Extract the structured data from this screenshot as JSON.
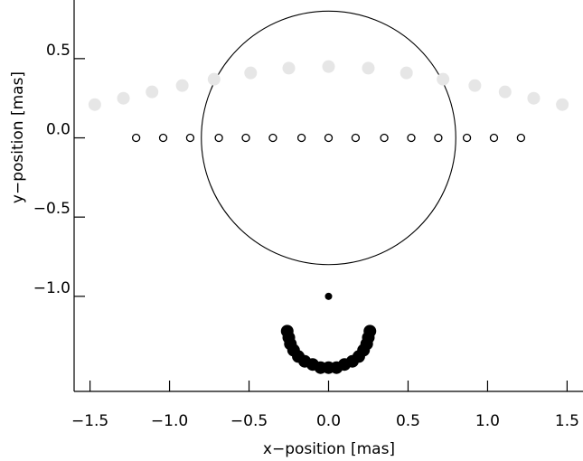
{
  "chart_data": {
    "type": "scatter",
    "xlabel": "x−position [mas]",
    "ylabel": "y−position [mas]",
    "xlim": [
      -1.6,
      1.6
    ],
    "ylim": [
      -1.6,
      0.87
    ],
    "grid": false,
    "x_ticks": [
      {
        "value": -1.5,
        "label": "−1.5"
      },
      {
        "value": -1.0,
        "label": "−1.0"
      },
      {
        "value": -0.5,
        "label": "−0.5"
      },
      {
        "value": 0.0,
        "label": "0.0"
      },
      {
        "value": 0.5,
        "label": "0.5"
      },
      {
        "value": 1.0,
        "label": "1.0"
      },
      {
        "value": 1.5,
        "label": "1.5"
      }
    ],
    "y_ticks": [
      {
        "value": 0.5,
        "label": "0.5"
      },
      {
        "value": 0.0,
        "label": "0.0"
      },
      {
        "value": -0.5,
        "label": "−0.5"
      },
      {
        "value": -1.0,
        "label": "−1.0"
      }
    ],
    "circle": {
      "cx": 0.0,
      "cy": 0.0,
      "r": 0.8,
      "color": "#000000"
    },
    "series": [
      {
        "style": "filled",
        "color": "#e6e6e6",
        "points": [
          [
            -1.47,
            0.21
          ],
          [
            -1.29,
            0.25
          ],
          [
            -1.11,
            0.29
          ],
          [
            -0.92,
            0.33
          ],
          [
            -0.72,
            0.37
          ],
          [
            -0.49,
            0.41
          ],
          [
            -0.25,
            0.44
          ],
          [
            0.0,
            0.45
          ],
          [
            0.25,
            0.44
          ],
          [
            0.49,
            0.41
          ],
          [
            0.72,
            0.37
          ],
          [
            0.92,
            0.33
          ],
          [
            1.11,
            0.29
          ],
          [
            1.29,
            0.25
          ],
          [
            1.47,
            0.21
          ]
        ]
      },
      {
        "style": "open",
        "color": "#000000",
        "points": [
          [
            -1.21,
            0.0
          ],
          [
            -1.04,
            0.0
          ],
          [
            -0.87,
            0.0
          ],
          [
            -0.69,
            0.0
          ],
          [
            -0.52,
            0.0
          ],
          [
            -0.35,
            0.0
          ],
          [
            -0.17,
            0.0
          ],
          [
            0.0,
            0.0
          ],
          [
            0.17,
            0.0
          ],
          [
            0.35,
            0.0
          ],
          [
            0.52,
            0.0
          ],
          [
            0.69,
            0.0
          ],
          [
            0.87,
            0.0
          ],
          [
            1.04,
            0.0
          ],
          [
            1.21,
            0.0
          ]
        ]
      },
      {
        "style": "filled-small",
        "color": "#000000",
        "points": [
          [
            0.0,
            -1.0
          ]
        ]
      },
      {
        "style": "filled",
        "color": "#000000",
        "points": [
          [
            -0.26,
            -1.22
          ],
          [
            -0.25,
            -1.26
          ],
          [
            -0.24,
            -1.3
          ],
          [
            -0.22,
            -1.34
          ],
          [
            -0.19,
            -1.38
          ],
          [
            -0.15,
            -1.41
          ],
          [
            -0.1,
            -1.43
          ],
          [
            -0.05,
            -1.45
          ],
          [
            0.0,
            -1.45
          ],
          [
            0.05,
            -1.45
          ],
          [
            0.1,
            -1.43
          ],
          [
            0.15,
            -1.41
          ],
          [
            0.19,
            -1.38
          ],
          [
            0.22,
            -1.34
          ],
          [
            0.24,
            -1.3
          ],
          [
            0.25,
            -1.26
          ],
          [
            0.26,
            -1.22
          ]
        ]
      }
    ]
  }
}
